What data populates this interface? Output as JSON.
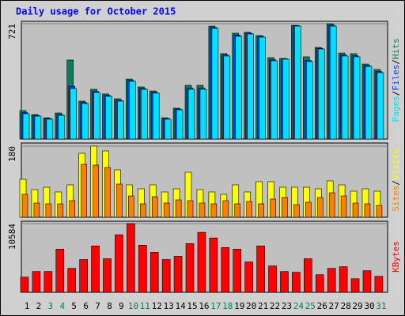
{
  "chart_data": {
    "type": "bar",
    "title": "Daily usage for October 2015",
    "categories": [
      "1",
      "2",
      "3",
      "4",
      "5",
      "6",
      "7",
      "8",
      "9",
      "10",
      "11",
      "12",
      "13",
      "14",
      "15",
      "16",
      "17",
      "18",
      "19",
      "20",
      "21",
      "22",
      "23",
      "24",
      "25",
      "26",
      "27",
      "28",
      "29",
      "30",
      "31"
    ],
    "category_colors": [
      "#000000",
      "#000000",
      "#00805c",
      "#00805c",
      "#000000",
      "#000000",
      "#000000",
      "#000000",
      "#000000",
      "#00805c",
      "#00805c",
      "#000000",
      "#000000",
      "#000000",
      "#000000",
      "#000000",
      "#00805c",
      "#00805c",
      "#000000",
      "#000000",
      "#000000",
      "#000000",
      "#000000",
      "#00805c",
      "#00805c",
      "#000000",
      "#000000",
      "#000000",
      "#000000",
      "#000000",
      "#00805c"
    ],
    "separator": "/",
    "panels": [
      {
        "ylim": [
          0,
          736
        ],
        "yticks": [
          721
        ],
        "grid": true,
        "series": [
          {
            "name": "Hits",
            "color": "#00805c",
            "values": [
              178,
              153,
              133,
              163,
              494,
              237,
              311,
              282,
              252,
              375,
              326,
              301,
              133,
              193,
              336,
              336,
              706,
              534,
              662,
              667,
              647,
              509,
              504,
              711,
              514,
              573,
              721,
              538,
              534,
              469,
              435
            ]
          },
          {
            "name": "Files",
            "color": "#0040ff",
            "values": [
              165,
              148,
              128,
              153,
              330,
              228,
              298,
              273,
              243,
              366,
              316,
              292,
              128,
              188,
              318,
              318,
              698,
              525,
              650,
              662,
              642,
              496,
              502,
              709,
              492,
              567,
              712,
              525,
              520,
              460,
              422
            ]
          },
          {
            "name": "Pages",
            "color": "#00e0ff",
            "values": [
              158,
              143,
              124,
              148,
              316,
              222,
              291,
              267,
              237,
              361,
              311,
              287,
              124,
              183,
              311,
              311,
              692,
              519,
              642,
              657,
              637,
              489,
              499,
              706,
              484,
              563,
              706,
              519,
              514,
              454,
              415
            ]
          }
        ]
      },
      {
        "ylim": [
          0,
          188
        ],
        "yticks": [
          180
        ],
        "grid": true,
        "series": [
          {
            "name": "Visits",
            "color": "#ffff00",
            "values": [
              96,
              70,
              76,
              64,
              82,
              162,
              180,
              168,
              120,
              82,
              72,
              82,
              64,
              72,
              114,
              70,
              64,
              58,
              82,
              64,
              90,
              90,
              76,
              76,
              76,
              72,
              92,
              82,
              66,
              72,
              66
            ]
          },
          {
            "name": "Sites",
            "color": "#ff8000",
            "values": [
              58,
              36,
              34,
              34,
              42,
              134,
              132,
              126,
              84,
              54,
              34,
              52,
              36,
              44,
              42,
              36,
              34,
              42,
              34,
              40,
              34,
              46,
              50,
              32,
              38,
              50,
              62,
              54,
              36,
              34,
              30
            ]
          }
        ]
      },
      {
        "ylim": [
          0,
          10950
        ],
        "yticks": [
          10584
        ],
        "grid": true,
        "series": [
          {
            "name": "KBytes",
            "color": "#ff0000",
            "values": [
              2339,
              3200,
              3200,
              6647,
              3693,
              5047,
              7140,
              5170,
              8863,
              10584,
              7263,
              6155,
              5047,
              5540,
              7509,
              9232,
              8370,
              6894,
              6647,
              4678,
              7140,
              4062,
              3200,
              3078,
              5170,
              2708,
              3693,
              3940,
              2093,
              3324,
              2462
            ]
          }
        ]
      }
    ]
  }
}
